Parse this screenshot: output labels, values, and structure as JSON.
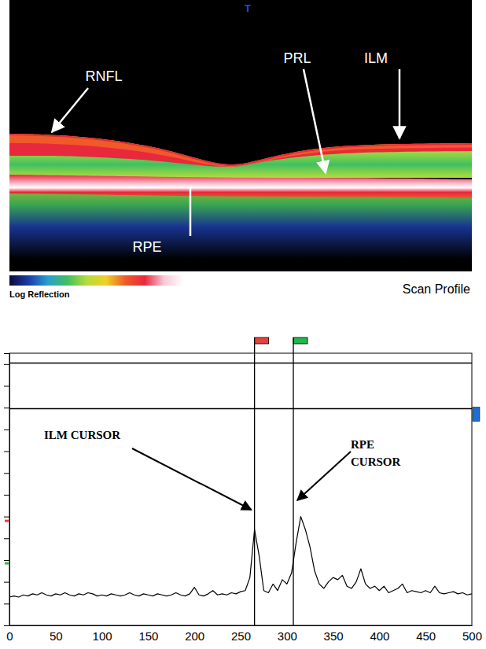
{
  "image": {
    "marker": "T",
    "labels": [
      "RNFL",
      "PRL",
      "ILM",
      "RPE"
    ],
    "colorbar_label": "Log Reflection",
    "colorscale": [
      "#0a0a3a",
      "#1c3ca8",
      "#28a0d0",
      "#40c060",
      "#b4dc3c",
      "#f0d028",
      "#f05a28",
      "#e8283c",
      "#f8c8d8",
      "#ffffff"
    ]
  },
  "chart_data": {
    "type": "line",
    "title": "Scan Profile",
    "color": "#000000",
    "tick_labels": "x",
    "x": [
      0,
      5,
      10,
      15,
      20,
      25,
      30,
      35,
      40,
      45,
      50,
      55,
      60,
      65,
      70,
      75,
      80,
      85,
      90,
      95,
      100,
      105,
      110,
      115,
      120,
      125,
      130,
      135,
      140,
      145,
      150,
      155,
      160,
      165,
      170,
      175,
      180,
      185,
      190,
      195,
      200,
      205,
      210,
      215,
      220,
      225,
      230,
      235,
      240,
      245,
      250,
      255,
      260,
      265,
      270,
      275,
      280,
      285,
      290,
      295,
      300,
      305,
      310,
      315,
      320,
      325,
      330,
      335,
      340,
      345,
      350,
      355,
      360,
      365,
      370,
      375,
      380,
      385,
      390,
      395,
      400,
      405,
      410,
      415,
      420,
      425,
      430,
      435,
      440,
      445,
      450,
      455,
      460,
      465,
      470,
      475,
      480,
      485,
      490,
      495,
      500
    ],
    "values": [
      1.3,
      1.35,
      1.3,
      1.4,
      1.35,
      1.45,
      1.4,
      1.5,
      1.4,
      1.35,
      1.45,
      1.4,
      1.5,
      1.4,
      1.35,
      1.45,
      1.4,
      1.5,
      1.45,
      1.35,
      1.4,
      1.35,
      1.45,
      1.4,
      1.35,
      1.4,
      1.5,
      1.4,
      1.35,
      1.45,
      1.4,
      1.35,
      1.45,
      1.4,
      1.35,
      1.4,
      1.5,
      1.4,
      1.35,
      1.45,
      1.75,
      1.4,
      1.35,
      1.45,
      1.6,
      1.4,
      1.45,
      1.4,
      1.5,
      1.45,
      1.55,
      1.6,
      2.2,
      4.4,
      3.2,
      1.6,
      1.5,
      1.9,
      1.6,
      2.1,
      1.9,
      2.4,
      3.8,
      5.0,
      4.4,
      3.6,
      2.5,
      1.9,
      1.7,
      2.0,
      2.2,
      2.1,
      2.3,
      1.8,
      1.7,
      2.0,
      2.6,
      1.9,
      1.7,
      1.8,
      1.6,
      1.8,
      1.5,
      1.6,
      1.7,
      1.9,
      1.5,
      1.6,
      1.55,
      1.5,
      1.6,
      1.5,
      1.8,
      1.5,
      1.45,
      1.5,
      1.55,
      1.45,
      1.5,
      1.4,
      1.45
    ],
    "xlim": [
      0,
      500
    ],
    "xticks": [
      0,
      50,
      100,
      150,
      200,
      250,
      300,
      350,
      400,
      450,
      500
    ],
    "ylim": [
      0,
      12.5
    ],
    "yticks": [
      0,
      1,
      2,
      3,
      4,
      5,
      6,
      7,
      8,
      9,
      10,
      11,
      12
    ],
    "reference_lines": [
      12.05,
      9.95
    ],
    "y_markers": [
      {
        "value": 4.8,
        "color": "#e8413c"
      },
      {
        "value": 2.85,
        "color": "#3cb44b"
      }
    ],
    "right_marker": {
      "value": 9.7,
      "color": "#1f6fd1"
    },
    "cursors": [
      {
        "label": "ILM CURSOR",
        "x": 265,
        "color": "#e8413c"
      },
      {
        "label": "RPE CURSOR",
        "x": 307,
        "color": "#1fb84a"
      }
    ]
  }
}
